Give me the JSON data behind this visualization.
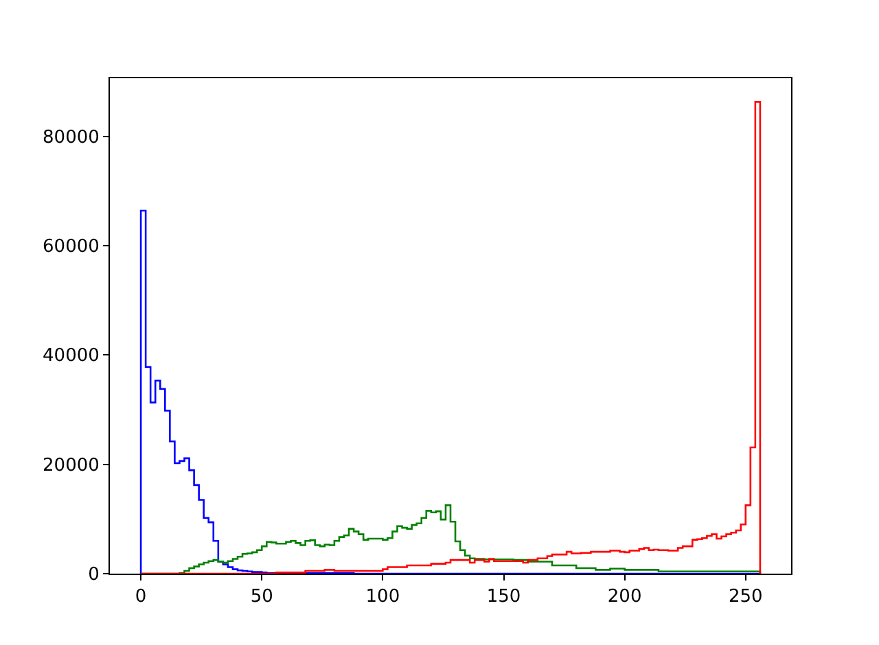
{
  "chart_data": {
    "type": "histogram",
    "bins": [
      0,
      2,
      4,
      6,
      8,
      10,
      12,
      14,
      16,
      18,
      20,
      22,
      24,
      26,
      28,
      30,
      32,
      34,
      36,
      38,
      40,
      42,
      44,
      46,
      48,
      50,
      52,
      54,
      56,
      58,
      60,
      62,
      64,
      66,
      68,
      70,
      72,
      74,
      76,
      78,
      80,
      82,
      84,
      86,
      88,
      90,
      92,
      94,
      96,
      98,
      100,
      102,
      104,
      106,
      108,
      110,
      112,
      114,
      116,
      118,
      120,
      122,
      124,
      126,
      128,
      130,
      132,
      134,
      136,
      138,
      140,
      142,
      144,
      146,
      148,
      150,
      152,
      154,
      156,
      158,
      160,
      162,
      164,
      166,
      168,
      170,
      172,
      174,
      176,
      178,
      180,
      182,
      184,
      186,
      188,
      190,
      192,
      194,
      196,
      198,
      200,
      202,
      204,
      206,
      208,
      210,
      212,
      214,
      216,
      218,
      220,
      222,
      224,
      226,
      228,
      230,
      232,
      234,
      236,
      238,
      240,
      242,
      244,
      246,
      248,
      250,
      252,
      254,
      256
    ],
    "series": [
      {
        "color": "#0000ff",
        "values": [
          66400,
          37800,
          31300,
          35300,
          33800,
          29800,
          24200,
          20200,
          20600,
          21100,
          18900,
          16200,
          13500,
          10200,
          9400,
          6000,
          2200,
          1700,
          1200,
          800,
          600,
          500,
          400,
          300,
          300,
          200,
          100,
          100,
          100,
          100,
          100,
          100,
          100,
          100,
          100,
          100,
          100,
          100,
          100,
          100,
          100,
          100,
          100,
          100,
          0,
          0,
          0,
          0,
          0,
          0,
          0,
          0,
          0,
          0,
          0,
          0,
          0,
          0,
          0,
          0,
          0,
          0,
          0,
          0,
          0,
          0,
          0,
          0,
          0,
          0,
          0,
          0,
          0,
          0,
          0,
          0,
          0,
          0,
          0,
          0,
          0,
          0,
          0,
          0,
          0,
          0,
          0,
          0,
          0,
          0,
          0,
          0,
          0,
          0,
          0,
          0,
          0,
          0,
          0,
          0,
          0,
          0,
          0,
          0,
          0,
          0,
          0,
          0,
          0,
          0,
          0,
          0,
          0,
          0,
          0,
          0,
          0,
          0,
          0,
          0,
          0,
          0,
          0,
          0,
          0,
          0,
          0,
          0
        ]
      },
      {
        "color": "#008000",
        "values": [
          0,
          0,
          0,
          0,
          0,
          0,
          0,
          0,
          100,
          500,
          1000,
          1300,
          1700,
          2000,
          2300,
          2500,
          2200,
          2000,
          2300,
          2700,
          3100,
          3600,
          3700,
          3900,
          4300,
          5000,
          5800,
          5700,
          5500,
          5500,
          5800,
          6000,
          5600,
          5200,
          6000,
          6100,
          5200,
          5000,
          5300,
          5200,
          6000,
          6700,
          7000,
          8200,
          7700,
          7200,
          6200,
          6400,
          6400,
          6400,
          6200,
          6500,
          7700,
          8700,
          8400,
          8200,
          8900,
          9200,
          10200,
          11500,
          11200,
          11400,
          9900,
          12500,
          9500,
          5900,
          4300,
          3300,
          2800,
          2700,
          2700,
          2600,
          2600,
          2600,
          2600,
          2600,
          2600,
          2500,
          2500,
          2500,
          2200,
          2200,
          2200,
          2200,
          2200,
          1500,
          1500,
          1500,
          1500,
          1500,
          1000,
          1000,
          1000,
          1000,
          700,
          700,
          700,
          900,
          900,
          900,
          700,
          700,
          700,
          700,
          700,
          700,
          700,
          400,
          400,
          400,
          400,
          400,
          400,
          400,
          400,
          400,
          400,
          400,
          400,
          400,
          400,
          400,
          400,
          400,
          400,
          400,
          400,
          400
        ]
      },
      {
        "color": "#ff0000",
        "values": [
          0,
          0,
          0,
          0,
          0,
          0,
          0,
          0,
          0,
          0,
          0,
          0,
          0,
          0,
          0,
          0,
          0,
          0,
          0,
          0,
          0,
          0,
          0,
          0,
          0,
          0,
          0,
          0,
          200,
          200,
          200,
          200,
          200,
          200,
          500,
          500,
          500,
          500,
          700,
          700,
          500,
          500,
          500,
          500,
          500,
          500,
          500,
          500,
          500,
          500,
          800,
          1200,
          1200,
          1200,
          1200,
          1500,
          1500,
          1500,
          1500,
          1500,
          1800,
          1800,
          1800,
          2000,
          2500,
          2500,
          2500,
          2500,
          2000,
          2500,
          2500,
          2200,
          2700,
          2300,
          2300,
          2300,
          2300,
          2300,
          2300,
          2000,
          2500,
          2500,
          2800,
          2800,
          3200,
          3500,
          3500,
          3500,
          4000,
          3700,
          3700,
          3800,
          3800,
          4000,
          4000,
          4000,
          4000,
          4200,
          4200,
          4000,
          3900,
          4200,
          4200,
          4500,
          4700,
          4300,
          4400,
          4300,
          4300,
          4200,
          4200,
          4700,
          5000,
          5000,
          6200,
          6300,
          6500,
          6900,
          7200,
          6400,
          6800,
          7200,
          7500,
          7900,
          9000,
          12500,
          23100,
          86300
        ]
      }
    ],
    "xlim": [
      -12.8,
      268.8
    ],
    "xticks": [
      0,
      50,
      100,
      150,
      200,
      250
    ],
    "ylim": [
      0,
      90615
    ],
    "yticks": [
      0,
      20000,
      40000,
      60000,
      80000
    ]
  }
}
